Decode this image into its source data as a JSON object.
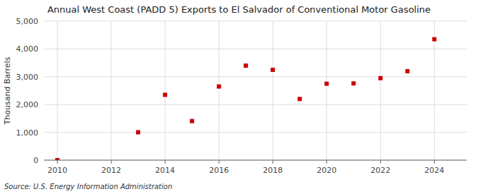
{
  "chart_data": {
    "type": "scatter",
    "title": "Annual West Coast (PADD 5) Exports to El Salvador of Conventional Motor Gasoline",
    "ylabel": "Thousand Barrels",
    "source": "Source: U.S. Energy Information Administration",
    "x": [
      2010,
      2013,
      2014,
      2015,
      2016,
      2017,
      2018,
      2019,
      2020,
      2021,
      2022,
      2023,
      2024
    ],
    "values": [
      0,
      1003,
      2350,
      1405,
      2650,
      3400,
      3250,
      2200,
      2750,
      2760,
      2950,
      3200,
      4350
    ],
    "color": "#cc0000",
    "marker": "square",
    "xlim": [
      2009.5,
      2025.2
    ],
    "ylim": [
      0,
      5000
    ],
    "xticks": [
      2010,
      2012,
      2014,
      2016,
      2018,
      2020,
      2022,
      2024
    ],
    "yticks": [
      0,
      {
        "value": 1000,
        "label": "1,000"
      },
      {
        "value": 2000,
        "label": "2,000"
      },
      {
        "value": 3000,
        "label": "3,000"
      },
      {
        "value": 4000,
        "label": "4,000"
      },
      {
        "value": 5000,
        "label": "5,000"
      }
    ],
    "grid": true
  }
}
